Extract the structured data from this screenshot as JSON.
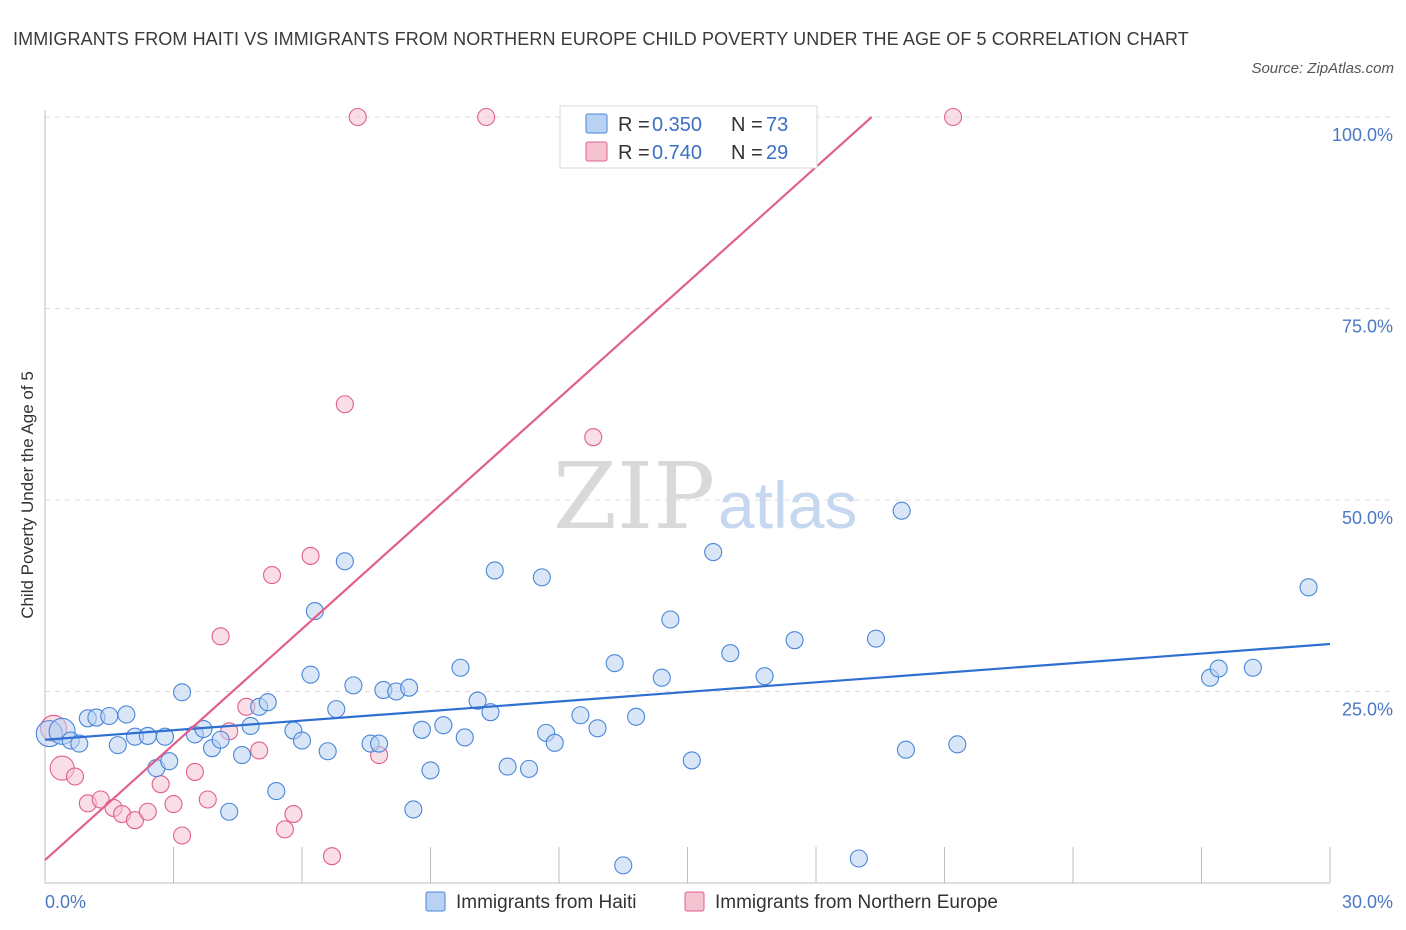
{
  "title": "IMMIGRANTS FROM HAITI VS IMMIGRANTS FROM NORTHERN EUROPE CHILD POVERTY UNDER THE AGE OF 5 CORRELATION CHART",
  "source": "Source: ZipAtlas.com",
  "watermark": {
    "zip": "ZIP",
    "atlas": "atlas"
  },
  "colors": {
    "haiti": "#4a86d8",
    "haiti_fill": "#b9d2f3",
    "europe": "#e0608a",
    "europe_fill": "#f5c2d2",
    "tick": "#4a78c4"
  },
  "chart_data": {
    "type": "scatter",
    "title": "IMMIGRANTS FROM HAITI VS IMMIGRANTS FROM NORTHERN EUROPE CHILD POVERTY UNDER THE AGE OF 5 CORRELATION CHART",
    "xlabel": "",
    "ylabel": "Child Poverty Under the Age of 5",
    "xlim": [
      0,
      30
    ],
    "ylim": [
      0,
      100
    ],
    "x_tick_labels": [
      "0.0%",
      "30.0%"
    ],
    "y_ticks": [
      25,
      50,
      75,
      100
    ],
    "y_tick_labels": [
      "25.0%",
      "50.0%",
      "75.0%",
      "100.0%"
    ],
    "grid": "horizontal dashed",
    "legend": {
      "placement": "top-center",
      "entries": [
        {
          "r_label": "R =",
          "r_value": "0.350",
          "n_label": "N =",
          "n_value": "73"
        },
        {
          "r_label": "R =",
          "r_value": "0.740",
          "n_label": "N =",
          "n_value": "29"
        }
      ]
    },
    "series": [
      {
        "name": "Immigrants from Haiti",
        "color": "#4a86d8",
        "trend": {
          "x": [
            0,
            30
          ],
          "y": [
            18.7,
            31.2
          ]
        },
        "points": [
          [
            0.1,
            19.5
          ],
          [
            0.4,
            19.8
          ],
          [
            0.6,
            18.6
          ],
          [
            0.8,
            18.2
          ],
          [
            1.0,
            21.5
          ],
          [
            1.2,
            21.6
          ],
          [
            1.5,
            21.8
          ],
          [
            1.7,
            18.0
          ],
          [
            1.9,
            22.0
          ],
          [
            2.1,
            19.1
          ],
          [
            2.4,
            19.2
          ],
          [
            2.6,
            15.0
          ],
          [
            2.8,
            19.1
          ],
          [
            2.9,
            15.9
          ],
          [
            3.2,
            24.9
          ],
          [
            3.5,
            19.4
          ],
          [
            3.7,
            20.1
          ],
          [
            3.9,
            17.6
          ],
          [
            4.1,
            18.7
          ],
          [
            4.3,
            9.3
          ],
          [
            4.6,
            16.7
          ],
          [
            4.8,
            20.5
          ],
          [
            5.0,
            23.0
          ],
          [
            5.2,
            23.6
          ],
          [
            5.4,
            12.0
          ],
          [
            5.8,
            19.9
          ],
          [
            6.0,
            18.6
          ],
          [
            6.2,
            27.2
          ],
          [
            6.3,
            35.5
          ],
          [
            6.6,
            17.2
          ],
          [
            6.8,
            22.7
          ],
          [
            7.0,
            42.0
          ],
          [
            7.2,
            25.8
          ],
          [
            7.6,
            18.2
          ],
          [
            7.8,
            18.2
          ],
          [
            7.9,
            25.2
          ],
          [
            8.2,
            25.0
          ],
          [
            8.5,
            25.5
          ],
          [
            8.6,
            9.6
          ],
          [
            8.8,
            20.0
          ],
          [
            9.0,
            14.7
          ],
          [
            9.3,
            20.6
          ],
          [
            9.7,
            28.1
          ],
          [
            9.8,
            19.0
          ],
          [
            10.1,
            23.8
          ],
          [
            10.4,
            22.3
          ],
          [
            10.5,
            40.8
          ],
          [
            10.8,
            15.2
          ],
          [
            11.3,
            14.9
          ],
          [
            11.6,
            39.9
          ],
          [
            11.7,
            19.6
          ],
          [
            11.9,
            18.3
          ],
          [
            12.5,
            21.9
          ],
          [
            12.9,
            20.2
          ],
          [
            13.3,
            28.7
          ],
          [
            13.5,
            2.3
          ],
          [
            13.8,
            21.7
          ],
          [
            14.4,
            26.8
          ],
          [
            14.6,
            34.4
          ],
          [
            15.1,
            16.0
          ],
          [
            15.6,
            43.2
          ],
          [
            16.0,
            30.0
          ],
          [
            16.8,
            27.0
          ],
          [
            17.5,
            31.7
          ],
          [
            19.0,
            3.2
          ],
          [
            19.4,
            31.9
          ],
          [
            20.0,
            48.6
          ],
          [
            20.1,
            17.4
          ],
          [
            21.3,
            18.1
          ],
          [
            27.2,
            26.8
          ],
          [
            27.4,
            28.0
          ],
          [
            28.2,
            28.1
          ],
          [
            29.5,
            38.6
          ]
        ]
      },
      {
        "name": "Immigrants from Northern Europe",
        "color": "#e0608a",
        "trend": {
          "x": [
            0,
            19.3
          ],
          "y": [
            3.0,
            100.0
          ]
        },
        "points": [
          [
            0.2,
            20.2
          ],
          [
            0.4,
            15.0
          ],
          [
            0.7,
            13.9
          ],
          [
            1.0,
            10.4
          ],
          [
            1.3,
            10.9
          ],
          [
            1.6,
            9.8
          ],
          [
            1.8,
            9.0
          ],
          [
            2.1,
            8.2
          ],
          [
            2.4,
            9.3
          ],
          [
            2.7,
            12.9
          ],
          [
            3.0,
            10.3
          ],
          [
            3.2,
            6.2
          ],
          [
            3.5,
            14.5
          ],
          [
            3.8,
            10.9
          ],
          [
            4.1,
            32.2
          ],
          [
            4.3,
            19.8
          ],
          [
            4.7,
            23.0
          ],
          [
            5.0,
            17.3
          ],
          [
            5.3,
            40.2
          ],
          [
            5.6,
            7.0
          ],
          [
            5.8,
            9.0
          ],
          [
            6.2,
            42.7
          ],
          [
            6.7,
            3.5
          ],
          [
            7.0,
            62.5
          ],
          [
            7.3,
            100.0
          ],
          [
            7.8,
            16.7
          ],
          [
            10.3,
            100.0
          ],
          [
            12.8,
            58.2
          ],
          [
            21.2,
            100.0
          ]
        ]
      }
    ]
  }
}
